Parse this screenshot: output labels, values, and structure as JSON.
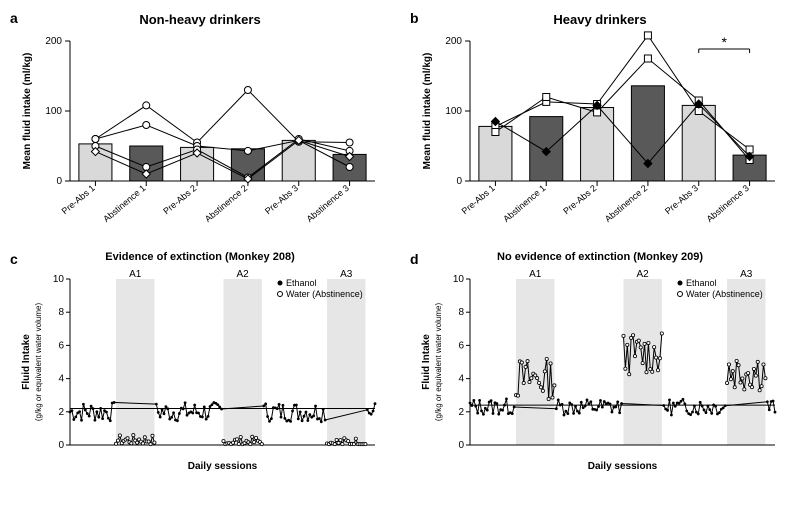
{
  "panel_a": {
    "label": "a",
    "title": "Non-heavy drinkers",
    "type": "bar+scatter",
    "ylabel": "Mean fluid intake (ml/kg)",
    "ylim": [
      0,
      200
    ],
    "ytick_step": 100,
    "categories": [
      "Pre-Abs 1",
      "Abstinence 1",
      "Pre-Abs 2",
      "Abstinence 2",
      "Pre-Abs 3",
      "Abstinence 3"
    ],
    "bar_values": [
      53,
      50,
      48,
      46,
      58,
      38
    ],
    "bar_colors": [
      "#d9d9d9",
      "#595959",
      "#d9d9d9",
      "#595959",
      "#d9d9d9",
      "#595959"
    ],
    "subjects": [
      {
        "marker": "circle_open",
        "values": [
          60,
          108,
          55,
          130,
          56,
          55
        ]
      },
      {
        "marker": "circle_open",
        "values": [
          60,
          80,
          50,
          43,
          58,
          20
        ]
      },
      {
        "marker": "circle_open",
        "values": [
          50,
          20,
          45,
          5,
          60,
          43
        ]
      },
      {
        "marker": "diamond_open",
        "values": [
          42,
          10,
          40,
          3,
          58,
          35
        ]
      }
    ],
    "border_color": "#000000",
    "bg": "#ffffff",
    "bar_width": 0.65,
    "title_fontsize": 13,
    "label_fontsize": 10
  },
  "panel_b": {
    "label": "b",
    "title": "Heavy drinkers",
    "type": "bar+scatter",
    "ylabel": "Mean fluid intake (ml/kg)",
    "ylim": [
      0,
      200
    ],
    "ytick_step": 100,
    "categories": [
      "Pre-Abs 1",
      "Abstinence 1",
      "Pre-Abs 2",
      "Abstinence 2",
      "Pre-Abs 3",
      "Abstinence 3"
    ],
    "bar_values": [
      78,
      92,
      105,
      136,
      108,
      37
    ],
    "bar_colors": [
      "#d9d9d9",
      "#595959",
      "#d9d9d9",
      "#595959",
      "#d9d9d9",
      "#595959"
    ],
    "subjects": [
      {
        "marker": "square_open",
        "values": [
          78,
          113,
          110,
          208,
          100,
          45
        ]
      },
      {
        "marker": "square_open",
        "values": [
          70,
          120,
          98,
          175,
          115,
          30
        ]
      },
      {
        "marker": "diamond_solid",
        "values": [
          85,
          42,
          108,
          25,
          110,
          35
        ]
      }
    ],
    "significance": {
      "between": [
        4,
        5
      ],
      "symbol": "*"
    },
    "border_color": "#000000",
    "bg": "#ffffff",
    "bar_width": 0.65,
    "title_fontsize": 13,
    "label_fontsize": 10
  },
  "panel_c": {
    "label": "c",
    "title": "Evidence of extinction (Monkey 208)",
    "type": "line",
    "ylabel": "Fluid Intake",
    "ylabel2": "(g/kg or equivalent water volume)",
    "xlabel": "Daily sessions",
    "ylim": [
      0,
      10
    ],
    "ytick_step": 2,
    "n_sessions": 160,
    "shaded": [
      {
        "start": 24,
        "end": 44,
        "label": "A1"
      },
      {
        "start": 80,
        "end": 100,
        "label": "A2"
      },
      {
        "start": 134,
        "end": 154,
        "label": "A3"
      }
    ],
    "hline": 2.2,
    "legend": [
      {
        "label": "Ethanol",
        "marker": "solid_circle"
      },
      {
        "label": "Water (Abstinence)",
        "marker": "open_circle"
      }
    ],
    "series_ethanol_color": "#000000",
    "series_water_color": "#000000",
    "shade_color": "#e6e6e6",
    "bg": "#ffffff",
    "ethanol_mean": 2.0,
    "ethanol_sd": 0.6,
    "water_levels": [
      0.3,
      0.2,
      0.15
    ],
    "title_fontsize": 11,
    "label_fontsize": 10
  },
  "panel_d": {
    "label": "d",
    "title": "No evidence of extinction (Monkey 209)",
    "type": "line",
    "ylabel": "Fluid Intake",
    "ylabel2": "(g/kg or equivalent water volume)",
    "xlabel": "Daily sessions",
    "ylim": [
      0,
      10
    ],
    "ytick_step": 2,
    "n_sessions": 160,
    "shaded": [
      {
        "start": 24,
        "end": 44,
        "label": "A1"
      },
      {
        "start": 80,
        "end": 100,
        "label": "A2"
      },
      {
        "start": 134,
        "end": 154,
        "label": "A3"
      }
    ],
    "hline": 2.4,
    "legend": [
      {
        "label": "Ethanol",
        "marker": "solid_circle"
      },
      {
        "label": "Water (Abstinence)",
        "marker": "open_circle"
      }
    ],
    "series_ethanol_color": "#000000",
    "series_water_color": "#000000",
    "shade_color": "#e6e6e6",
    "bg": "#ffffff",
    "ethanol_mean": 2.3,
    "ethanol_sd": 0.5,
    "water_levels": [
      4.0,
      5.5,
      4.5
    ],
    "title_fontsize": 11,
    "label_fontsize": 10
  }
}
